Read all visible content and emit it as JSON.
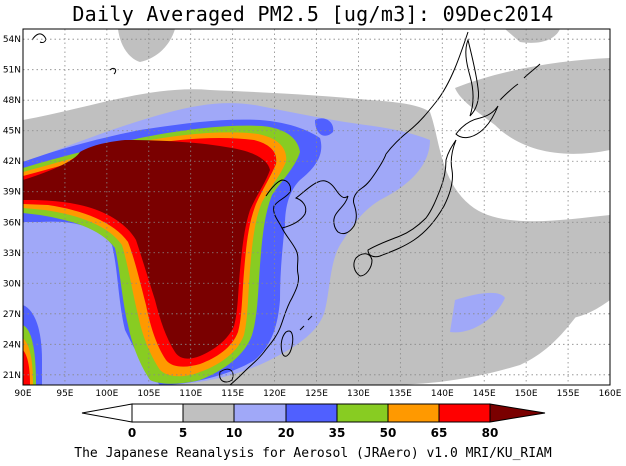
{
  "title": "Daily Averaged PM2.5 [ug/m3]: 09Dec2014",
  "footer": "The Japanese Reanalysis for Aerosol (JRAero) v1.0 MRI/KU_RIAM",
  "map": {
    "projection": "lat-lon",
    "lon_range": [
      90,
      160
    ],
    "lat_range": [
      20,
      55
    ],
    "grid": "dotted",
    "coastlines": true,
    "lon_ticks": [
      "90E",
      "95E",
      "100E",
      "105E",
      "110E",
      "115E",
      "120E",
      "125E",
      "130E",
      "135E",
      "140E",
      "145E",
      "150E",
      "155E",
      "160E"
    ],
    "lat_ticks": [
      "21N",
      "24N",
      "27N",
      "30N",
      "33N",
      "36N",
      "39N",
      "42N",
      "45N",
      "48N",
      "51N",
      "54N"
    ]
  },
  "colorbar": {
    "unit": "ug/m3",
    "ticks": [
      "0",
      "5",
      "10",
      "20",
      "35",
      "50",
      "65",
      "80"
    ],
    "colors": [
      "#ffffff",
      "#ffffff",
      "#c0c0c0",
      "#a0a8f8",
      "#5060ff",
      "#88cc22",
      "#ff9900",
      "#ff0000",
      "#7a0000"
    ]
  },
  "colors": {
    "background": "#ffffff",
    "c5_10": "#c0c0c0",
    "c10_20": "#a0a8f8",
    "c20_35": "#5060ff",
    "c35_50": "#88cc22",
    "c50_65": "#ff9900",
    "c65_80": "#ff0000",
    "c80": "#7a0000"
  }
}
